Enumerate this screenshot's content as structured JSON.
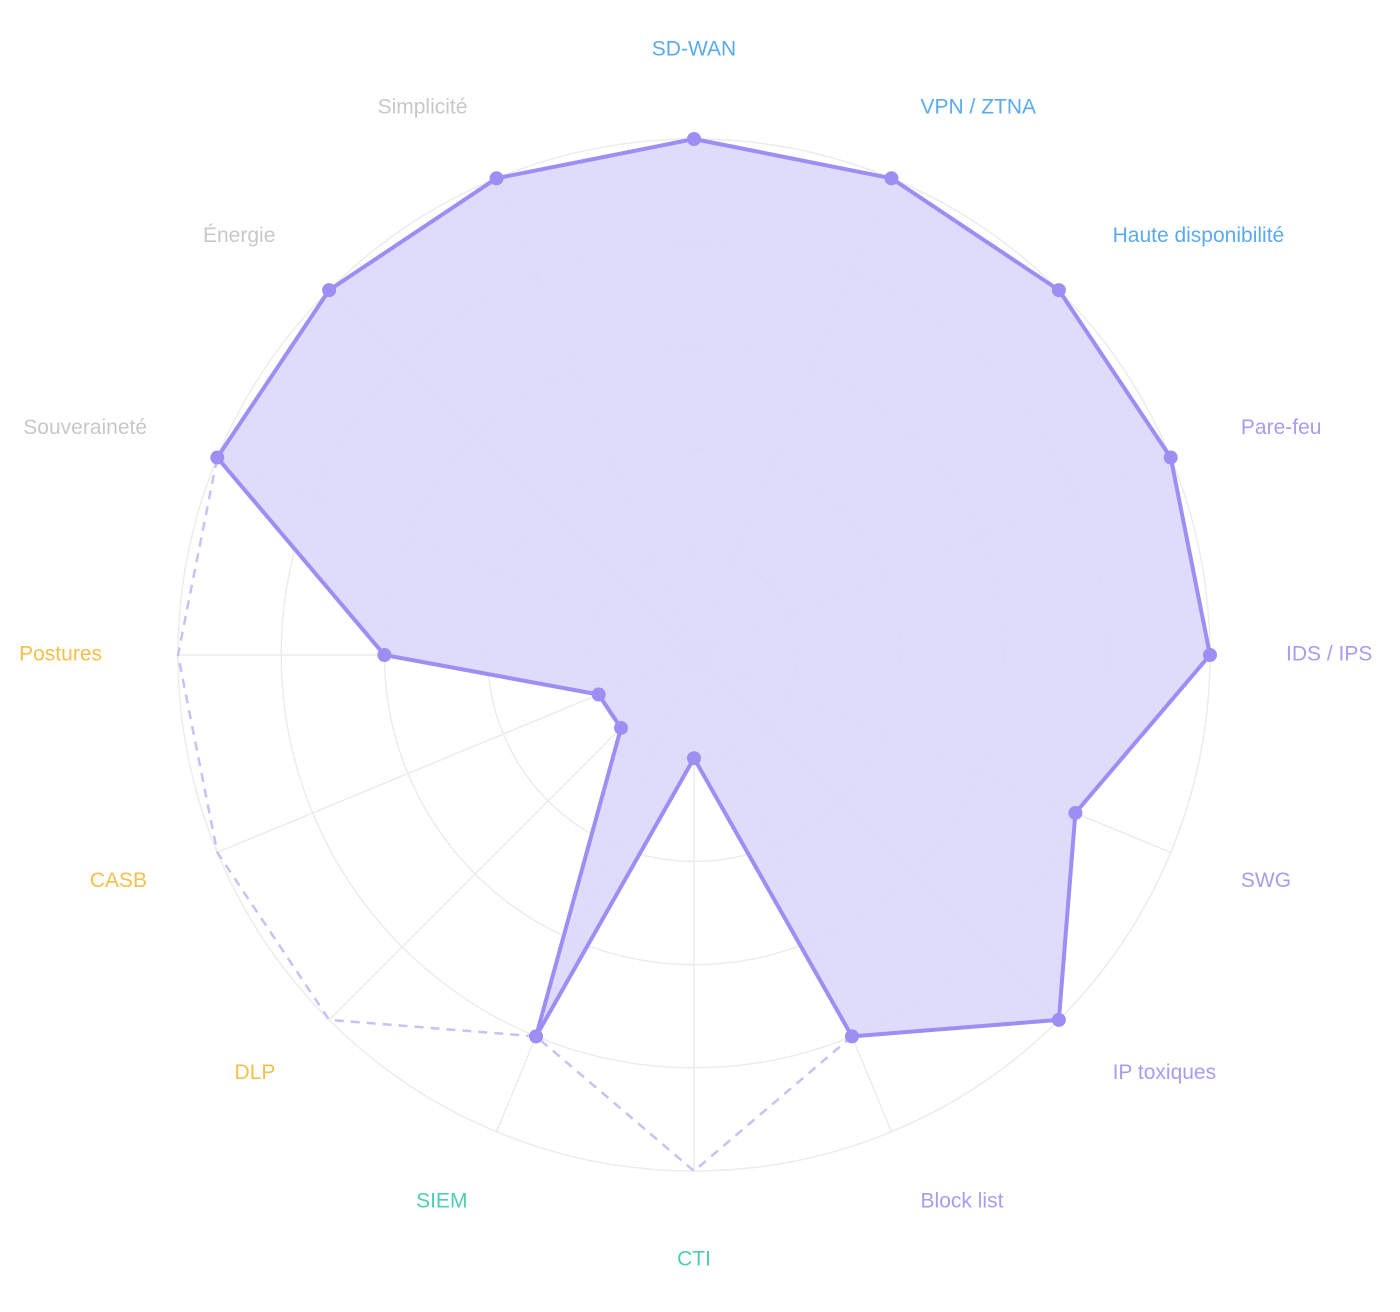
{
  "chart_data": {
    "type": "radar",
    "categories": [
      "SD-WAN",
      "VPN / ZTNA",
      "Haute disponibilité",
      "Pare-feu",
      "IDS / IPS",
      "SWG",
      "IP toxiques",
      "Block list",
      "CTI",
      "SIEM",
      "DLP",
      "CASB",
      "Postures",
      "Souveraineté",
      "Énergie",
      "Simplicité"
    ],
    "category_colors": [
      "#5aaaf0",
      "#5aaaf0",
      "#5aaaf0",
      "#a99cf0",
      "#a99cf0",
      "#a99cf0",
      "#a99cf0",
      "#a99cf0",
      "#4ccfb0",
      "#4ccfb0",
      "#f5c04a",
      "#f5c04a",
      "#f5c04a",
      "#c8c8c8",
      "#c8c8c8",
      "#c8c8c8"
    ],
    "series": [
      {
        "color": "#9c8ef2",
        "fill": "#dcd7fb",
        "style": "solid",
        "values": [
          100,
          100,
          100,
          100,
          100,
          80,
          100,
          80,
          20,
          80,
          20,
          20,
          60,
          100,
          100,
          100
        ]
      },
      {
        "color": "#c9c1f5",
        "style": "dashed",
        "values": [
          null,
          null,
          null,
          null,
          null,
          null,
          null,
          80,
          100,
          80,
          100,
          100,
          100,
          100,
          null,
          null
        ]
      }
    ],
    "ylim": [
      0,
      100
    ],
    "yticks": [
      20,
      40,
      60,
      80,
      100
    ],
    "grid": true
  }
}
